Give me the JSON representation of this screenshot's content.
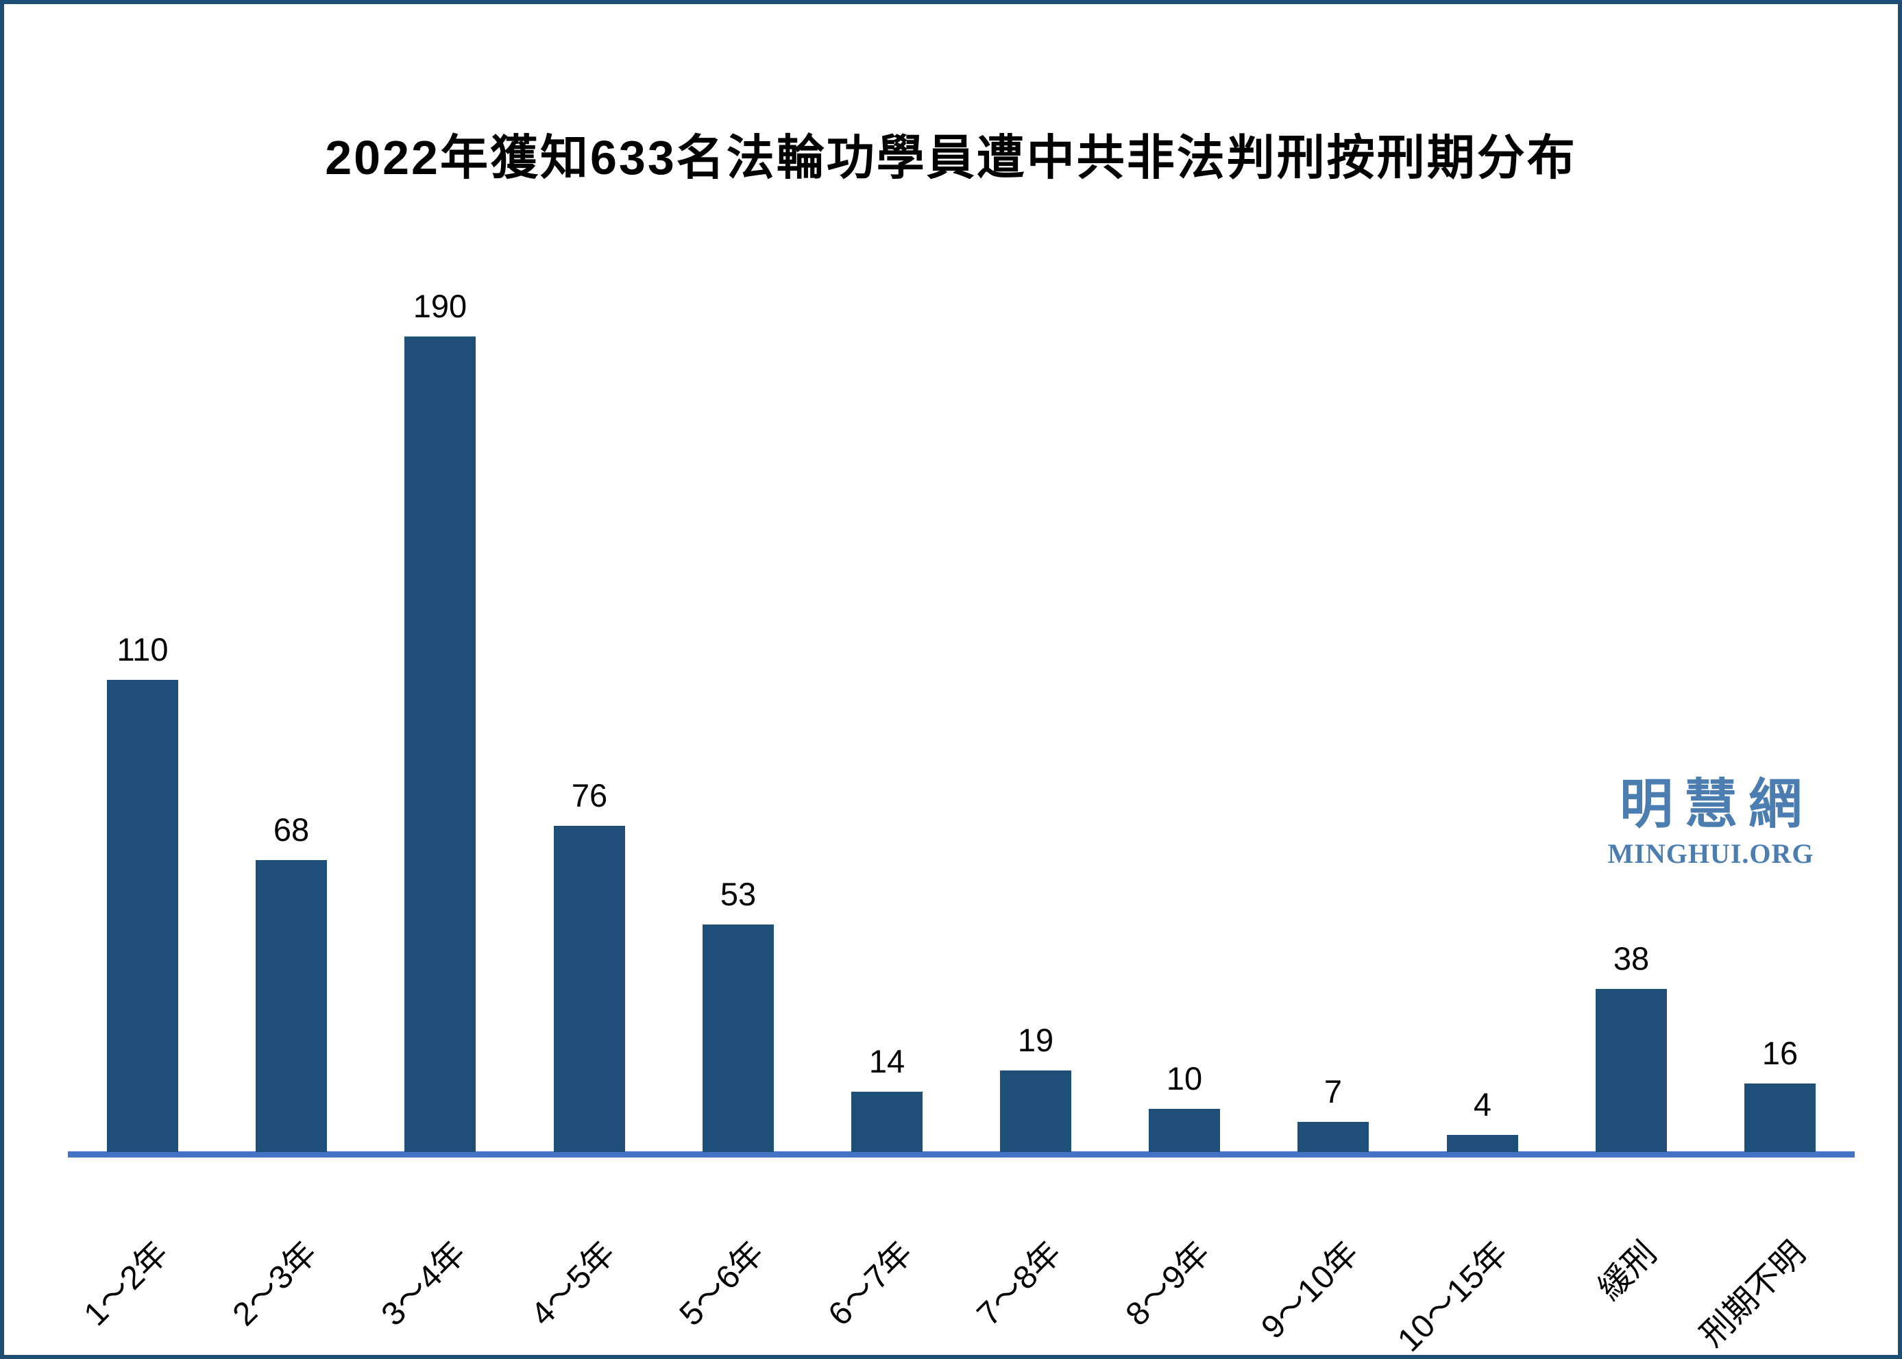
{
  "title": "2022年獲知633名法輪功學員遭中共非法判刑按刑期分布",
  "watermark": {
    "cjk": "明慧網",
    "latin": "MINGHUI.ORG",
    "color": "#4B7DB0"
  },
  "colors": {
    "bar": "#1F4E79",
    "axis": "#4472C4",
    "frame_border": "#1F4E74",
    "text": "#000000"
  },
  "chart_data": {
    "type": "bar",
    "title": "2022年獲知633名法輪功學員遭中共非法判刑按刑期分布",
    "categories": [
      "1～2年",
      "2～3年",
      "3～4年",
      "4～5年",
      "5～6年",
      "6～7年",
      "7～8年",
      "8～9年",
      "9～10年",
      "10～15年",
      "緩刑",
      "刑期不明"
    ],
    "values": [
      110,
      68,
      190,
      76,
      53,
      14,
      19,
      10,
      7,
      4,
      38,
      16
    ],
    "xlabel": "",
    "ylabel": "",
    "ylim": [
      0,
      190
    ],
    "grid": false,
    "legend": false,
    "data_labels": true,
    "x_tick_rotation_deg": -45
  }
}
